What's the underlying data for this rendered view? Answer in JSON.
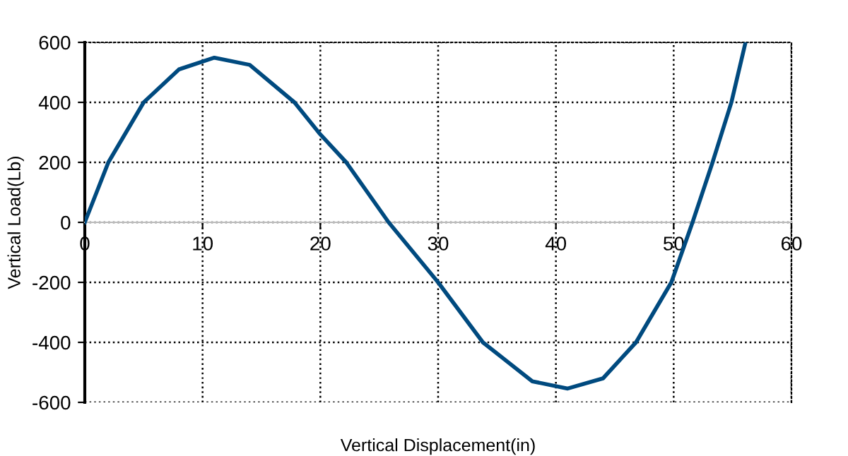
{
  "chart_data": {
    "type": "line",
    "xlabel": "Vertical Displacement(in)",
    "ylabel": "Vertical Load(Lb)",
    "x": [
      0,
      2.0,
      5.0,
      8.0,
      11.0,
      14.0,
      17.8,
      20.0,
      22.2,
      25.8,
      30.0,
      33.8,
      38.0,
      41.0,
      44.0,
      46.8,
      49.8,
      51.6,
      53.3,
      54.9,
      56.1
    ],
    "series": [
      {
        "color": "#004a7f",
        "values": [
          0,
          200,
          400,
          510,
          549,
          525,
          400,
          293,
          200,
          0,
          -200,
          -400,
          -530,
          -554,
          -520,
          -400,
          -200,
          0,
          200,
          400,
          600
        ]
      }
    ],
    "xlim": [
      0,
      60
    ],
    "ylim": [
      -600,
      600
    ],
    "xticks": [
      0,
      10,
      20,
      30,
      40,
      50,
      60
    ],
    "yticks": [
      -600,
      -400,
      -200,
      0,
      200,
      400,
      600
    ],
    "grid": true,
    "marker": "none",
    "line_style": "solid"
  }
}
